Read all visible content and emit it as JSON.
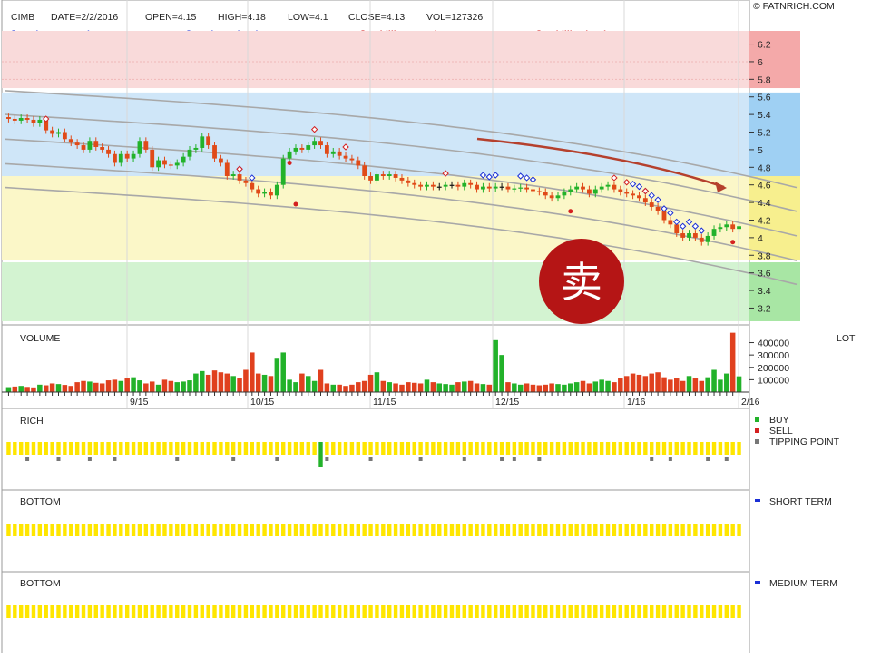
{
  "header": {
    "symbol": "CIMB",
    "date": "DATE=2/2/2016",
    "open": "OPEN=4.15",
    "high": "HIGH=4.18",
    "low": "LOW=4.1",
    "close": "CLOSE=4.13",
    "vol": "VOL=127326",
    "copyright": "© FATNRICH.COM"
  },
  "legend": [
    {
      "label": "Spicy entry price > 5.18",
      "color": "#1a2fd6",
      "filled": true
    },
    {
      "label": "Spicy exit price < 3.93",
      "color": "#1a2fd6",
      "filled": false
    },
    {
      "label": "Chilli entry price > 4.21",
      "color": "#d42020",
      "filled": true
    },
    {
      "label": "Chilli exit price < 4.01",
      "color": "#d42020",
      "filled": false
    }
  ],
  "stamp": {
    "char": "卖",
    "color": "#b51515"
  },
  "panels": {
    "volume": {
      "title": "VOLUME",
      "unit": "LOT"
    },
    "rich": {
      "title": "RICH",
      "legend": [
        "BUY",
        "SELL",
        "TIPPING POINT"
      ],
      "legend_colors": [
        "#22b22a",
        "#d42020",
        "#777777"
      ]
    },
    "bottom1": {
      "title": "BOTTOM",
      "legend": "SHORT TERM",
      "legend_color": "#1a2fd6"
    },
    "bottom2": {
      "title": "BOTTOM",
      "legend": "MEDIUM TERM",
      "legend_color": "#1a2fd6"
    }
  },
  "colors": {
    "up": "#22b22a",
    "down": "#e04a18",
    "band": "#a8a8a8",
    "zone_red": "#f9dada",
    "zone_blue": "#cfe6f8",
    "zone_yellow": "#fbf7c8",
    "zone_green": "#d3f3d1",
    "bar_yellow": "#ffe600"
  },
  "chart_data": {
    "type": "candlestick",
    "title": "CIMB",
    "x_ticks": [
      "9/15",
      "10/15",
      "11/15",
      "12/15",
      "1/16",
      "2/16"
    ],
    "price_axis": {
      "ticks": [
        3.2,
        3.4,
        3.6,
        3.8,
        4,
        4.2,
        4.4,
        4.6,
        4.8,
        5,
        5.2,
        5.4,
        5.6,
        5.8,
        6,
        6.2
      ],
      "range": [
        3.05,
        6.35
      ]
    },
    "volume_axis": {
      "ticks": [
        100000,
        200000,
        300000,
        400000
      ],
      "tick_labels": [
        "100000",
        "200000",
        "300000",
        "400000"
      ],
      "range": [
        0,
        470000
      ]
    },
    "price_zones": [
      {
        "from": 5.7,
        "to": 6.35,
        "color": "red"
      },
      {
        "from": 4.7,
        "to": 5.65,
        "color": "blue"
      },
      {
        "from": 3.75,
        "to": 4.7,
        "color": "yellow"
      },
      {
        "from": 3.05,
        "to": 3.72,
        "color": "green"
      }
    ],
    "closes": [
      5.35,
      5.33,
      5.36,
      5.34,
      5.3,
      5.34,
      5.22,
      5.18,
      5.2,
      5.12,
      5.08,
      5.05,
      5.0,
      5.1,
      5.03,
      5.0,
      4.95,
      4.85,
      4.95,
      4.9,
      4.95,
      5.1,
      5.0,
      4.8,
      4.88,
      4.83,
      4.82,
      4.85,
      4.92,
      5.0,
      5.02,
      5.15,
      5.05,
      4.9,
      4.85,
      4.7,
      4.72,
      4.65,
      4.62,
      4.55,
      4.5,
      4.52,
      4.48,
      4.6,
      4.9,
      4.98,
      5.02,
      5.0,
      5.05,
      5.1,
      5.05,
      4.95,
      4.98,
      4.93,
      4.9,
      4.88,
      4.82,
      4.7,
      4.65,
      4.72,
      4.7,
      4.72,
      4.68,
      4.65,
      4.62,
      4.6,
      4.58,
      4.6,
      4.58,
      4.58,
      4.6,
      4.6,
      4.58,
      4.62,
      4.6,
      4.55,
      4.58,
      4.56,
      4.58,
      4.58,
      4.55,
      4.56,
      4.57,
      4.55,
      4.53,
      4.52,
      4.48,
      4.45,
      4.48,
      4.52,
      4.55,
      4.58,
      4.55,
      4.5,
      4.55,
      4.58,
      4.6,
      4.55,
      4.52,
      4.5,
      4.48,
      4.45,
      4.4,
      4.35,
      4.3,
      4.2,
      4.15,
      4.05,
      4.0,
      4.05,
      4.0,
      3.95,
      4.02,
      4.1,
      4.12,
      4.15,
      4.1,
      4.13
    ],
    "volumes": [
      40000,
      45000,
      50000,
      42000,
      38000,
      60000,
      55000,
      70000,
      65000,
      58000,
      50000,
      80000,
      90000,
      85000,
      75000,
      70000,
      95000,
      100000,
      90000,
      110000,
      120000,
      95000,
      70000,
      85000,
      60000,
      100000,
      90000,
      80000,
      85000,
      95000,
      150000,
      170000,
      140000,
      175000,
      160000,
      150000,
      130000,
      110000,
      180000,
      320000,
      150000,
      140000,
      130000,
      270000,
      320000,
      100000,
      80000,
      150000,
      130000,
      90000,
      180000,
      70000,
      60000,
      60000,
      50000,
      60000,
      80000,
      90000,
      140000,
      160000,
      90000,
      80000,
      70000,
      60000,
      80000,
      75000,
      70000,
      100000,
      80000,
      70000,
      65000,
      60000,
      80000,
      85000,
      90000,
      70000,
      65000,
      60000,
      420000,
      300000,
      80000,
      70000,
      60000,
      70000,
      60000,
      55000,
      60000,
      70000,
      65000,
      60000,
      70000,
      80000,
      90000,
      70000,
      85000,
      100000,
      90000,
      80000,
      110000,
      130000,
      150000,
      140000,
      130000,
      150000,
      160000,
      120000,
      100000,
      110000,
      90000,
      130000,
      110000,
      90000,
      120000,
      180000,
      100000,
      150000,
      480000,
      127326
    ],
    "spicy_exit_markers": 24,
    "chilli_entry_markers": 4
  }
}
